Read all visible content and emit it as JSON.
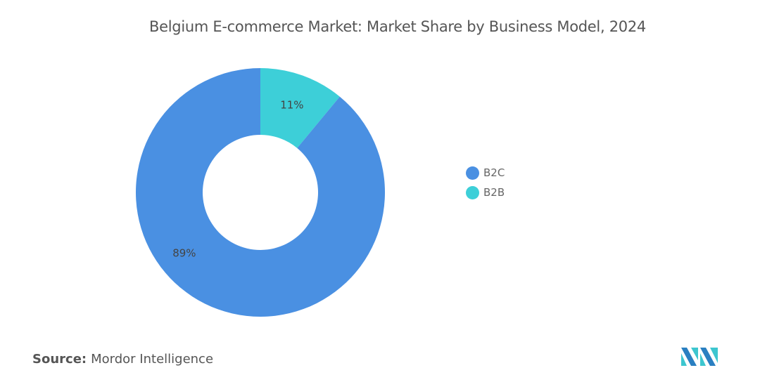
{
  "chart_data": {
    "type": "donut",
    "title": "Belgium E-commerce Market: Market Share by Business Model, 2024",
    "categories": [
      "B2C",
      "B2B"
    ],
    "values": [
      89,
      11
    ],
    "unit": "%",
    "data_labels": [
      "89%",
      "11%"
    ],
    "colors": {
      "B2C": "#4a90e2",
      "B2B": "#3dcfd8"
    },
    "legend": [
      {
        "label": "B2C",
        "color": "#4a90e2"
      },
      {
        "label": "B2B",
        "color": "#3dcfd8"
      }
    ],
    "legend_position": "right"
  },
  "source": {
    "label": "Source:",
    "value": "Mordor Intelligence"
  },
  "logo": {
    "icon": "mordor-intelligence-logo"
  }
}
